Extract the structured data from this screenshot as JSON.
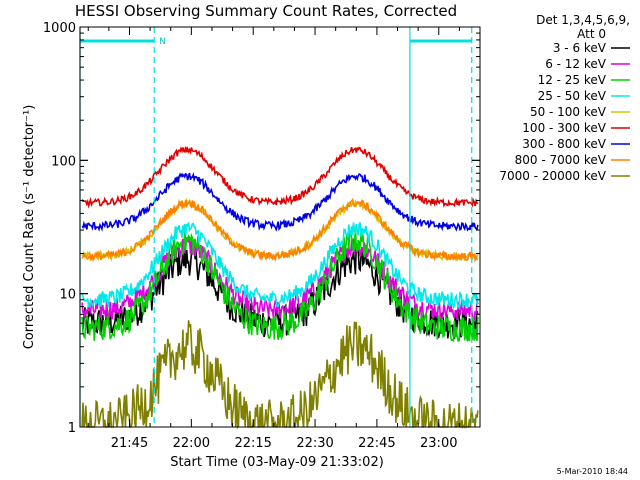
{
  "chart_data": {
    "type": "line",
    "title": "HESSI Observing Summary Count Rates, Corrected",
    "xlabel": "Start Time (03-May-09 21:33:02)",
    "ylabel": "Corrected Count Rate (s⁻¹ detector⁻¹)",
    "y_scale": "log",
    "xlim": [
      "21:33",
      "23:10"
    ],
    "ylim": [
      1,
      1000
    ],
    "x_tick_labels": [
      "21:45",
      "22:00",
      "22:15",
      "22:30",
      "22:45",
      "23:00"
    ],
    "x_tick_minutes": [
      45,
      60,
      75,
      90,
      105,
      120
    ],
    "y_tick_labels": [
      "1",
      "10",
      "100",
      "1000"
    ],
    "y_tick_values": [
      1,
      10,
      100,
      1000
    ],
    "legend_position": "right",
    "legend_header": [
      "Det 1,3,4,5,6,9,",
      "Att 0"
    ],
    "time_axis_start_minute": 33,
    "time_axis_end_minute": 130,
    "cyan_markers": {
      "solid_lines_minutes": [
        33,
        113
      ],
      "dashed_lines_minutes": [
        51,
        128
      ],
      "top_bars_minutes": [
        [
          33,
          51
        ],
        [
          113,
          128
        ]
      ],
      "n_label": "N",
      "n_label_minute": 51.5
    },
    "series": [
      {
        "name": "3 - 6 keV",
        "color": "#000000",
        "min": 6,
        "max": 18,
        "noise": 0.12
      },
      {
        "name": "6 - 12 keV",
        "color": "#e000e0",
        "min": 7.5,
        "max": 23,
        "noise": 0.08
      },
      {
        "name": "12 - 25 keV",
        "color": "#00d000",
        "min": 5.5,
        "max": 25,
        "noise": 0.1
      },
      {
        "name": "25 - 50 keV",
        "color": "#00e8e8",
        "min": 9,
        "max": 31,
        "noise": 0.06
      },
      {
        "name": "50 - 100 keV",
        "color": "#d8c000",
        "min": 19,
        "max": 47,
        "noise": 0.03
      },
      {
        "name": "100 - 300 keV",
        "color": "#e00000",
        "min": 48,
        "max": 120,
        "noise": 0.025
      },
      {
        "name": "300 - 800 keV",
        "color": "#0000e0",
        "min": 32,
        "max": 76,
        "noise": 0.03
      },
      {
        "name": "800 - 7000 keV",
        "color": "#ff8000",
        "min": 19,
        "max": 48,
        "noise": 0.03
      },
      {
        "name": "7000 - 20000 keV",
        "color": "#808000",
        "min": 1,
        "max": 4,
        "noise": 0.2
      }
    ]
  },
  "timestamp": "5-Mar-2010 18:44"
}
